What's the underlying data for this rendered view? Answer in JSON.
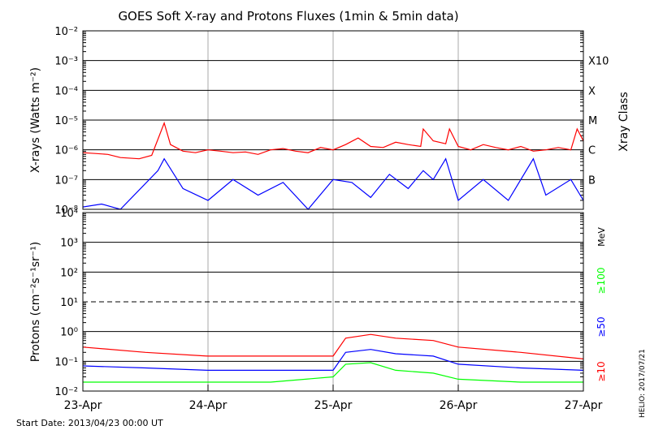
{
  "title": "GOES Soft X-ray and Protons Fluxes   (1min & 5min data)",
  "footer": {
    "start_date": "Start Date: 2013/04/23 00:00 UT",
    "credit": "HELIO: 2017/07/21"
  },
  "colors": {
    "red": "#ff0000",
    "blue": "#0000ff",
    "green": "#00ff00",
    "grid": "#aaaaaa",
    "axis": "#000000"
  },
  "chart_data": [
    {
      "type": "line",
      "panel": "xrays",
      "title": "GOES Soft X-ray and Protons Fluxes   (1min & 5min data)",
      "ylabel": "X-rays (Watts m⁻²)",
      "yscale": "log",
      "ylim": [
        1e-08,
        0.01
      ],
      "ytick_labels": [
        "10⁻⁸",
        "10⁻⁷",
        "10⁻⁶",
        "10⁻⁵",
        "10⁻⁴",
        "10⁻³",
        "10⁻²"
      ],
      "right_axis_title": "Xray Class",
      "right_labels": [
        "B",
        "C",
        "M",
        "X",
        "X10"
      ],
      "x_dates": [
        "23-Apr",
        "24-Apr",
        "25-Apr",
        "26-Apr",
        "27-Apr"
      ],
      "grid": true,
      "series": [
        {
          "color": "red",
          "points": [
            [
              0,
              8e-07
            ],
            [
              0.1,
              7.5e-07
            ],
            [
              0.2,
              7e-07
            ],
            [
              0.3,
              5.5e-07
            ],
            [
              0.45,
              5e-07
            ],
            [
              0.55,
              6.5e-07
            ],
            [
              0.65,
              8e-06
            ],
            [
              0.7,
              1.5e-06
            ],
            [
              0.8,
              9e-07
            ],
            [
              0.9,
              8e-07
            ],
            [
              1.0,
              1e-06
            ],
            [
              1.1,
              9e-07
            ],
            [
              1.2,
              8e-07
            ],
            [
              1.3,
              8.5e-07
            ],
            [
              1.4,
              7e-07
            ],
            [
              1.5,
              1e-06
            ],
            [
              1.6,
              1.1e-06
            ],
            [
              1.7,
              9e-07
            ],
            [
              1.8,
              8e-07
            ],
            [
              1.9,
              1.2e-06
            ],
            [
              2.0,
              1e-06
            ],
            [
              2.1,
              1.5e-06
            ],
            [
              2.2,
              2.5e-06
            ],
            [
              2.3,
              1.3e-06
            ],
            [
              2.4,
              1.2e-06
            ],
            [
              2.5,
              1.8e-06
            ],
            [
              2.6,
              1.5e-06
            ],
            [
              2.7,
              1.3e-06
            ],
            [
              2.72,
              5e-06
            ],
            [
              2.8,
              2e-06
            ],
            [
              2.9,
              1.6e-06
            ],
            [
              2.93,
              5e-06
            ],
            [
              3.0,
              1.3e-06
            ],
            [
              3.1,
              1e-06
            ],
            [
              3.2,
              1.5e-06
            ],
            [
              3.3,
              1.2e-06
            ],
            [
              3.4,
              1e-06
            ],
            [
              3.5,
              1.3e-06
            ],
            [
              3.6,
              9e-07
            ],
            [
              3.7,
              1e-06
            ],
            [
              3.8,
              1.2e-06
            ],
            [
              3.9,
              1e-06
            ],
            [
              3.95,
              5e-06
            ],
            [
              4.0,
              2e-06
            ]
          ]
        },
        {
          "color": "blue",
          "points": [
            [
              0,
              1.2e-08
            ],
            [
              0.15,
              1.5e-08
            ],
            [
              0.3,
              1e-08
            ],
            [
              0.6,
              2e-07
            ],
            [
              0.65,
              5e-07
            ],
            [
              0.8,
              5e-08
            ],
            [
              1.0,
              2e-08
            ],
            [
              1.2,
              1e-07
            ],
            [
              1.4,
              3e-08
            ],
            [
              1.6,
              8e-08
            ],
            [
              1.8,
              1e-08
            ],
            [
              2.0,
              1e-07
            ],
            [
              2.15,
              8e-08
            ],
            [
              2.3,
              2.5e-08
            ],
            [
              2.45,
              1.5e-07
            ],
            [
              2.6,
              5e-08
            ],
            [
              2.72,
              2e-07
            ],
            [
              2.8,
              1e-07
            ],
            [
              2.9,
              5e-07
            ],
            [
              3.0,
              2e-08
            ],
            [
              3.2,
              1e-07
            ],
            [
              3.4,
              2e-08
            ],
            [
              3.6,
              5e-07
            ],
            [
              3.7,
              3e-08
            ],
            [
              3.9,
              1e-07
            ],
            [
              4.0,
              2e-08
            ]
          ]
        }
      ]
    },
    {
      "type": "line",
      "panel": "protons",
      "ylabel": "Protons (cm⁻²s⁻¹sr⁻¹)",
      "yscale": "log",
      "ylim": [
        0.01,
        10000
      ],
      "ytick_labels": [
        "10⁻²",
        "10⁻¹",
        "10⁰",
        "10¹",
        "10²",
        "10³",
        "10⁴"
      ],
      "threshold_line": 10,
      "right_axis_title": "MeV",
      "right_labels": [
        "≥100",
        "≥50",
        "≥10"
      ],
      "x_dates": [
        "23-Apr",
        "24-Apr",
        "25-Apr",
        "26-Apr",
        "27-Apr"
      ],
      "grid": true,
      "series": [
        {
          "name": "≥10",
          "color": "red",
          "points": [
            [
              0,
              0.3
            ],
            [
              0.5,
              0.2
            ],
            [
              1.0,
              0.15
            ],
            [
              1.5,
              0.15
            ],
            [
              2.0,
              0.15
            ],
            [
              2.1,
              0.6
            ],
            [
              2.3,
              0.8
            ],
            [
              2.5,
              0.6
            ],
            [
              2.8,
              0.5
            ],
            [
              3.0,
              0.3
            ],
            [
              3.5,
              0.2
            ],
            [
              4.0,
              0.12
            ]
          ]
        },
        {
          "name": "≥50",
          "color": "blue",
          "points": [
            [
              0,
              0.07
            ],
            [
              0.5,
              0.06
            ],
            [
              1.0,
              0.05
            ],
            [
              1.5,
              0.05
            ],
            [
              2.0,
              0.05
            ],
            [
              2.1,
              0.2
            ],
            [
              2.3,
              0.25
            ],
            [
              2.5,
              0.18
            ],
            [
              2.8,
              0.15
            ],
            [
              3.0,
              0.08
            ],
            [
              3.5,
              0.06
            ],
            [
              4.0,
              0.05
            ]
          ]
        },
        {
          "name": "≥100",
          "color": "green",
          "points": [
            [
              0,
              0.02
            ],
            [
              0.5,
              0.02
            ],
            [
              1.0,
              0.02
            ],
            [
              1.5,
              0.02
            ],
            [
              2.0,
              0.03
            ],
            [
              2.1,
              0.08
            ],
            [
              2.3,
              0.09
            ],
            [
              2.5,
              0.05
            ],
            [
              2.8,
              0.04
            ],
            [
              3.0,
              0.025
            ],
            [
              3.5,
              0.02
            ],
            [
              4.0,
              0.02
            ]
          ]
        }
      ]
    }
  ]
}
